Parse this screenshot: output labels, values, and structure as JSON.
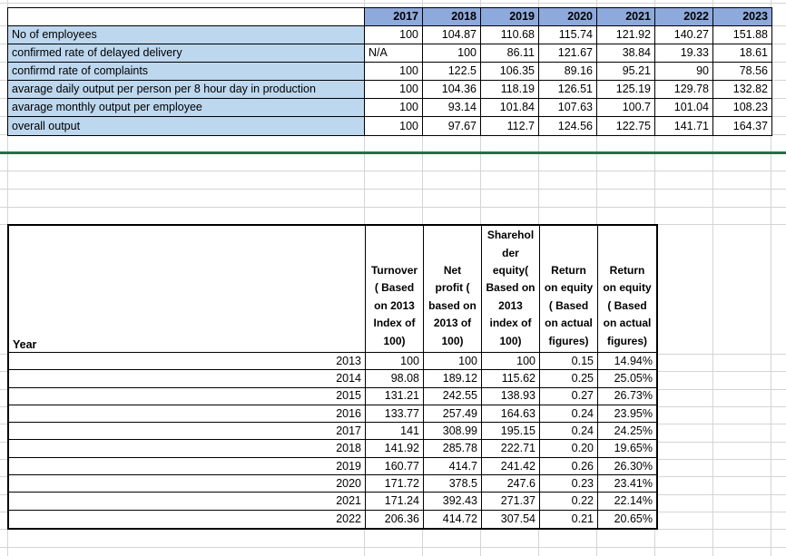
{
  "sheet": {
    "colors": {
      "gridline": "#d4d4d4",
      "divider_green": "#1f7245",
      "year_header_bg": "#8EA9DB",
      "row_label_bg": "#BDD7EE",
      "table_border": "#000000"
    },
    "top_table": {
      "corner_label": "",
      "years": [
        "2017",
        "2018",
        "2019",
        "2020",
        "2021",
        "2022",
        "2023"
      ],
      "rows": [
        {
          "label": "No of employees",
          "values": [
            "100",
            "104.87",
            "110.68",
            "115.74",
            "121.92",
            "140.27",
            "151.88"
          ]
        },
        {
          "label": "confirmed rate of delayed delivery",
          "values": [
            "N/A",
            "100",
            "86.11",
            "121.67",
            "38.84",
            "19.33",
            "18.61"
          ]
        },
        {
          "label": "confirmd rate of complaints",
          "values": [
            "100",
            "122.5",
            "106.35",
            "89.16",
            "95.21",
            "90",
            "78.56"
          ]
        },
        {
          "label": "avarage daily output per person per 8 hour day in production",
          "values": [
            "100",
            "104.36",
            "118.19",
            "126.51",
            "125.19",
            "129.78",
            "132.82"
          ]
        },
        {
          "label": "avarage monthly output per employee",
          "values": [
            "100",
            "93.14",
            "101.84",
            "107.63",
            "100.7",
            "101.04",
            "108.23"
          ]
        },
        {
          "label": "overall output",
          "values": [
            "100",
            "97.67",
            "112.7",
            "124.56",
            "122.75",
            "141.71",
            "164.37"
          ]
        }
      ]
    },
    "bottom_table": {
      "year_column_header": "Year",
      "column_headers": [
        "Turnover\n( Based\non 2013\nIndex of\n100)",
        "Net\nprofit (\nbased on\n2013 of\n100)",
        "Sharehol\nder\nequity(\nBased on\n2013\nindex of\n100)",
        "Return\non equity\n( Based\non actual\nfigures)",
        "Return\non equity\n( Based\non actual\nfigures)"
      ],
      "rows": [
        {
          "year": "2013",
          "values": [
            "100",
            "100",
            "100",
            "0.15",
            "14.94%"
          ]
        },
        {
          "year": "2014",
          "values": [
            "98.08",
            "189.12",
            "115.62",
            "0.25",
            "25.05%"
          ]
        },
        {
          "year": "2015",
          "values": [
            "131.21",
            "242.55",
            "138.93",
            "0.27",
            "26.73%"
          ]
        },
        {
          "year": "2016",
          "values": [
            "133.77",
            "257.49",
            "164.63",
            "0.24",
            "23.95%"
          ]
        },
        {
          "year": "2017",
          "values": [
            "141",
            "308.99",
            "195.15",
            "0.24",
            "24.25%"
          ]
        },
        {
          "year": "2018",
          "values": [
            "141.92",
            "285.78",
            "222.71",
            "0.20",
            "19.65%"
          ]
        },
        {
          "year": "2019",
          "values": [
            "160.77",
            "414.7",
            "241.42",
            "0.26",
            "26.30%"
          ]
        },
        {
          "year": "2020",
          "values": [
            "171.72",
            "378.5",
            "247.6",
            "0.23",
            "23.41%"
          ]
        },
        {
          "year": "2021",
          "values": [
            "171.24",
            "392.43",
            "271.37",
            "0.22",
            "22.14%"
          ]
        },
        {
          "year": "2022",
          "values": [
            "206.36",
            "414.72",
            "307.54",
            "0.21",
            "20.65%"
          ]
        }
      ]
    }
  }
}
